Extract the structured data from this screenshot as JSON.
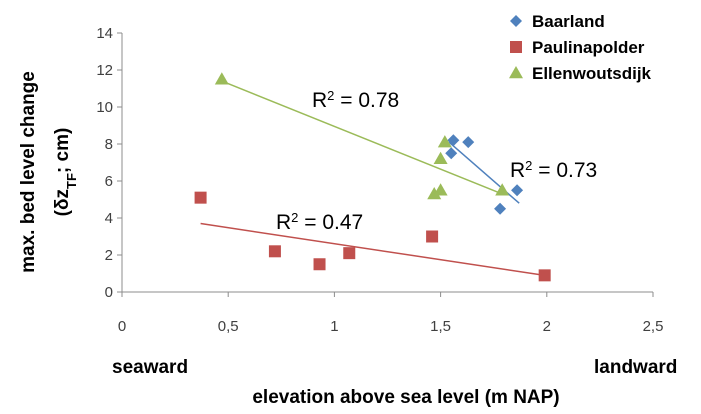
{
  "chart_data": {
    "type": "scatter",
    "xlabel": "elevation above sea level (m NAP)",
    "ylabel_main": "max. bed level change",
    "ylabel_sub_prefix": "(δz",
    "ylabel_sub_subscript": "TF",
    "ylabel_sub_suffix": "; cm)",
    "xlim": [
      0,
      2.5
    ],
    "ylim": [
      0,
      14
    ],
    "x_ticks": [
      0,
      0.5,
      1,
      1.5,
      2,
      2.5
    ],
    "x_tick_labels": [
      "0",
      "0,5",
      "1",
      "1,5",
      "2",
      "2,5"
    ],
    "y_ticks": [
      0,
      2,
      4,
      6,
      8,
      10,
      12,
      14
    ],
    "y_tick_labels": [
      "0",
      "2",
      "4",
      "6",
      "8",
      "10",
      "12",
      "14"
    ],
    "grid": false,
    "legend_position": "top-right",
    "seaward_label": "seaward",
    "landward_label": "landward",
    "series": [
      {
        "name": "Baarland",
        "marker": "diamond",
        "color": "#4F81BD",
        "points": [
          {
            "x": 1.55,
            "y": 7.5
          },
          {
            "x": 1.56,
            "y": 8.2
          },
          {
            "x": 1.63,
            "y": 8.1
          },
          {
            "x": 1.78,
            "y": 4.5
          },
          {
            "x": 1.86,
            "y": 5.5
          }
        ],
        "trend": {
          "x1": 1.54,
          "y1": 8.1,
          "x2": 1.87,
          "y2": 4.8
        },
        "r2_label": "= 0.73"
      },
      {
        "name": "Paulinapolder",
        "marker": "square",
        "color": "#C0504D",
        "points": [
          {
            "x": 0.37,
            "y": 5.1
          },
          {
            "x": 0.72,
            "y": 2.2
          },
          {
            "x": 0.93,
            "y": 1.5
          },
          {
            "x": 1.07,
            "y": 2.1
          },
          {
            "x": 1.46,
            "y": 3.0
          },
          {
            "x": 1.99,
            "y": 0.9
          }
        ],
        "trend": {
          "x1": 0.37,
          "y1": 3.7,
          "x2": 1.99,
          "y2": 0.9
        },
        "r2_label": "= 0.47"
      },
      {
        "name": "Ellenwoutsdijk",
        "marker": "triangle",
        "color": "#9BBB59",
        "points": [
          {
            "x": 0.47,
            "y": 11.5
          },
          {
            "x": 1.47,
            "y": 5.3
          },
          {
            "x": 1.5,
            "y": 5.5
          },
          {
            "x": 1.5,
            "y": 7.2
          },
          {
            "x": 1.52,
            "y": 8.1
          },
          {
            "x": 1.79,
            "y": 5.5
          }
        ],
        "trend": {
          "x1": 0.47,
          "y1": 11.4,
          "x2": 1.79,
          "y2": 5.3
        },
        "r2_label": "= 0.78"
      }
    ]
  }
}
